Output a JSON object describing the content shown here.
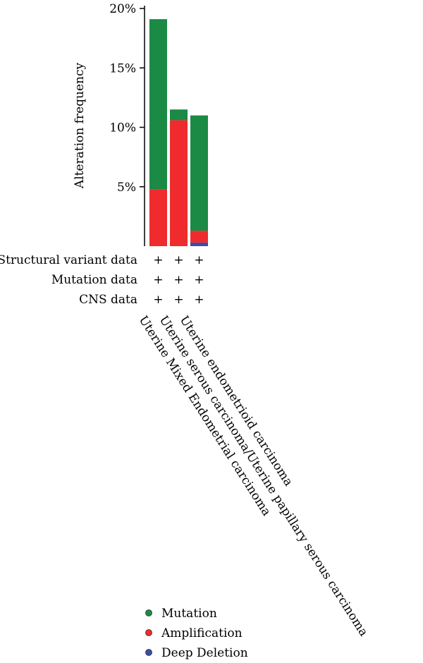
{
  "chart_data": {
    "type": "bar",
    "stacked": true,
    "ylabel": "Alteration frequency",
    "ylim": [
      0,
      20
    ],
    "yticks": [
      5,
      10,
      15,
      20
    ],
    "ytick_labels": [
      "5%",
      "10%",
      "15%",
      "20%"
    ],
    "categories": [
      "Uterine Mixed Endometrial carcinoma",
      "Uterine serous carcinoma/Uterine papillary serous carcinoma",
      "Uterine endometrioid carcinoma"
    ],
    "series": [
      {
        "name": "Deep Deletion",
        "color": "#3a4fa3",
        "values": [
          0,
          0,
          0.3
        ]
      },
      {
        "name": "Amplification",
        "color": "#ef2b2d",
        "values": [
          4.8,
          10.6,
          1.0
        ]
      },
      {
        "name": "Mutation",
        "color": "#1a8a45",
        "values": [
          14.3,
          0.9,
          9.7
        ]
      }
    ],
    "data_rows": [
      {
        "label": "Structural variant data",
        "marks": [
          "+",
          "+",
          "+"
        ]
      },
      {
        "label": "Mutation data",
        "marks": [
          "+",
          "+",
          "+"
        ]
      },
      {
        "label": "CNS data",
        "marks": [
          "+",
          "+",
          "+"
        ]
      }
    ],
    "legend": [
      {
        "name": "Mutation",
        "color": "#1a8a45"
      },
      {
        "name": "Amplification",
        "color": "#ef2b2d"
      },
      {
        "name": "Deep Deletion",
        "color": "#3a4fa3"
      }
    ],
    "legend_position": "bottom-center",
    "grid": false
  }
}
